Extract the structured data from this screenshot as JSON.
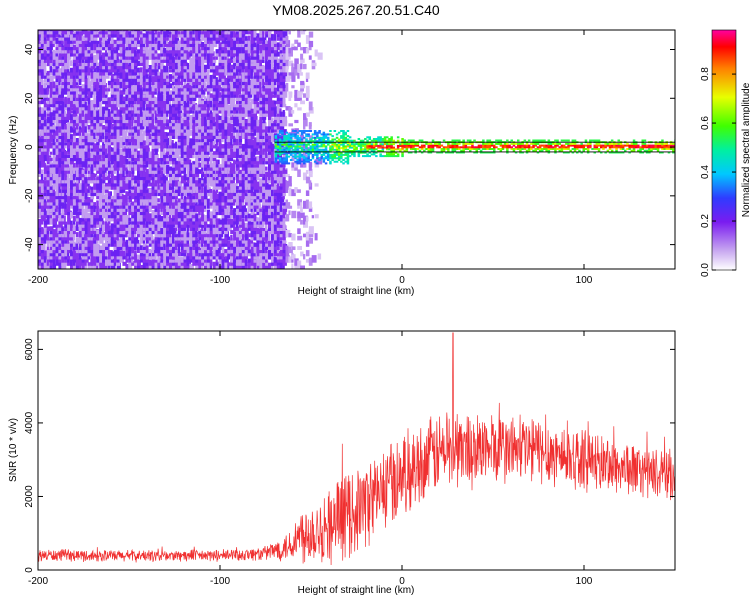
{
  "title": "YM08.2025.267.20.51.C40",
  "chart_data": [
    {
      "type": "heatmap",
      "xlabel": "Height of straight line (km)",
      "ylabel": "Frequency (Hz)",
      "xlim": [
        -200,
        150
      ],
      "ylim": [
        -50,
        48
      ],
      "xticks": [
        -200,
        -100,
        0,
        100
      ],
      "yticks": [
        -40,
        -20,
        0,
        20,
        40
      ],
      "grid": false,
      "colorbar": {
        "label": "Normalized spectral amplitude",
        "range": [
          0,
          0.98
        ],
        "ticks": [
          0.0,
          0.2,
          0.4,
          0.6,
          0.8
        ],
        "tick_labels": [
          "0.0",
          "0.2",
          "0.4",
          "0.6",
          "0.8"
        ],
        "colors": [
          "#ffffff",
          "#c8a8f0",
          "#7a1cf0",
          "#2f3cff",
          "#00c8ff",
          "#00f0a0",
          "#40ff00",
          "#e8ff00",
          "#ff8000",
          "#ff0000",
          "#ff00a0"
        ]
      },
      "reference_lines_hz": [
        2,
        -2
      ],
      "noise_region_x": [
        -200,
        -45
      ],
      "carrier_x": [
        -70,
        150
      ],
      "carrier_freq_hz": 0
    },
    {
      "type": "line",
      "xlabel": "Height of straight line (km)",
      "ylabel": "SNR (10 * v/v)",
      "xlim": [
        -200,
        150
      ],
      "ylim": [
        0,
        6500
      ],
      "xticks": [
        -200,
        -100,
        0,
        100
      ],
      "yticks": [
        0,
        2000,
        4000,
        6000
      ],
      "grid": false,
      "color": "#f03030",
      "envelope": {
        "x": [
          -200,
          -150,
          -100,
          -75,
          -60,
          -55,
          -40,
          -30,
          -20,
          -10,
          0,
          10,
          20,
          30,
          40,
          50,
          60,
          70,
          80,
          90,
          100,
          110,
          120,
          130,
          140,
          150
        ],
        "mean": [
          400,
          380,
          390,
          450,
          700,
          1000,
          1200,
          1500,
          1800,
          2200,
          2600,
          2900,
          3200,
          3300,
          3300,
          3300,
          3300,
          3300,
          3200,
          3100,
          3000,
          2900,
          2800,
          2700,
          2600,
          2600
        ],
        "amplitude": [
          180,
          180,
          180,
          220,
          500,
          900,
          1200,
          1300,
          1300,
          1300,
          1300,
          1200,
          1200,
          1200,
          1200,
          1100,
          1100,
          1100,
          1000,
          1000,
          900,
          900,
          850,
          800,
          750,
          750
        ]
      },
      "peak": {
        "x": 28,
        "y": 6450
      }
    }
  ]
}
